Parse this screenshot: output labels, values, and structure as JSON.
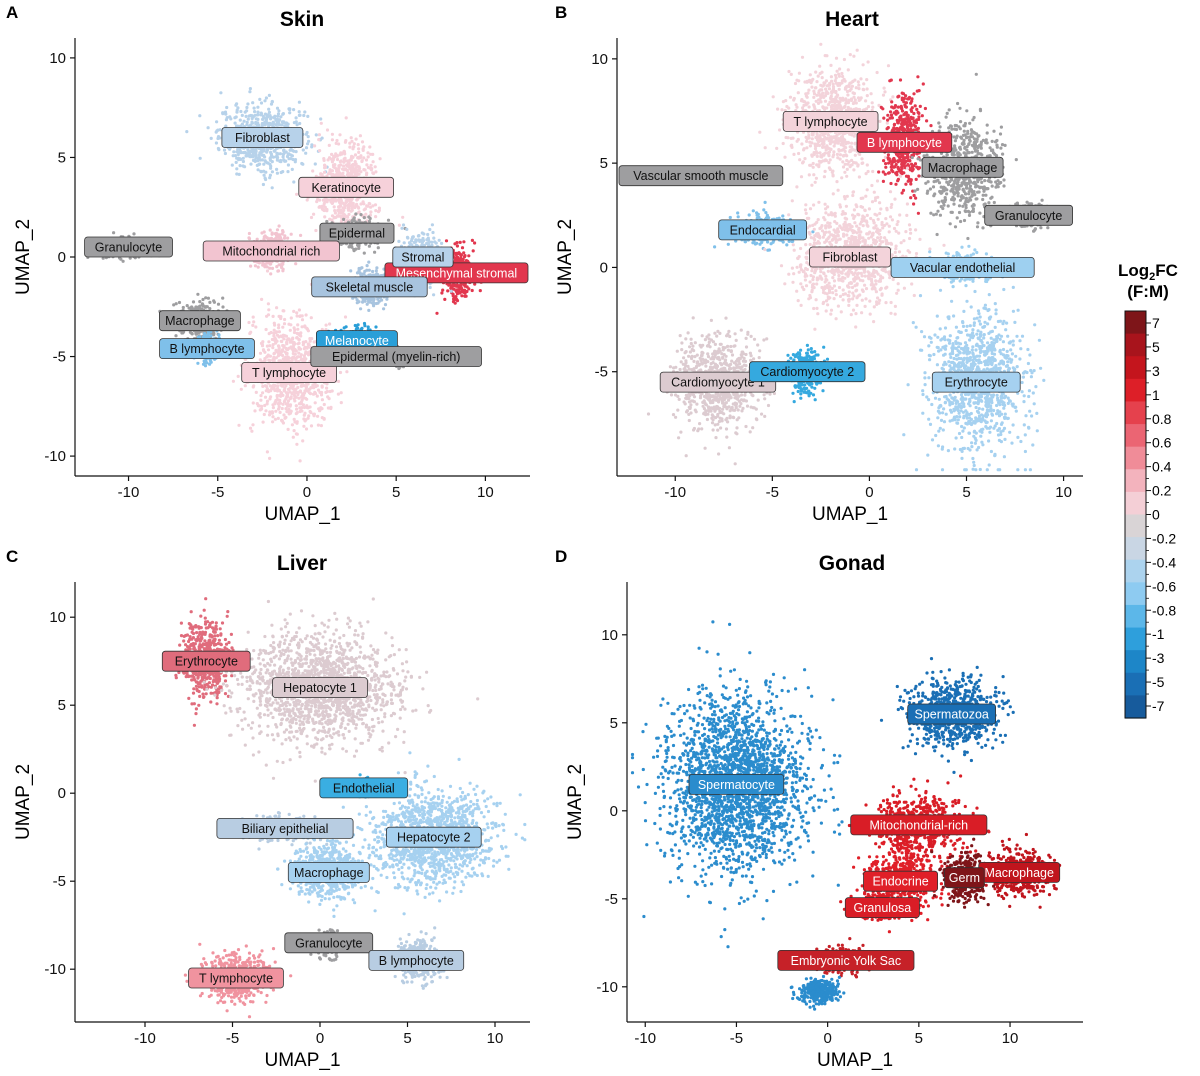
{
  "chart_data": [
    {
      "type": "scatter",
      "panel_letter": "A",
      "title": "Skin",
      "xlabel": "UMAP_1",
      "ylabel": "UMAP_2",
      "xlim": [
        -13,
        12.5
      ],
      "ylim": [
        -11,
        11
      ],
      "xticks": [
        -10,
        -5,
        0,
        5,
        10
      ],
      "yticks": [
        -10,
        -5,
        0,
        5,
        10
      ],
      "clusters": [
        {
          "label": "Fibroblast",
          "x": -2.5,
          "y": 6.0,
          "sx": 2.2,
          "sy": 1.5,
          "color": "#b7d2ea"
        },
        {
          "label": "Keratinocyte",
          "x": 2.2,
          "y": 3.5,
          "sx": 1.6,
          "sy": 2.0,
          "color": "#f6d1da"
        },
        {
          "label": "Granulocyte",
          "x": -10.0,
          "y": 0.5,
          "sx": 1.4,
          "sy": 0.4,
          "color": "#9e9ea0"
        },
        {
          "label": "Epidermal",
          "x": 2.8,
          "y": 1.2,
          "sx": 1.3,
          "sy": 0.6,
          "color": "#9e9ea0"
        },
        {
          "label": "Mesenchymal stromal",
          "x": 8.5,
          "y": -0.8,
          "sx": 0.7,
          "sy": 1.2,
          "color": "#e2374e"
        },
        {
          "label": "Mitochondrial rich",
          "x": -2.0,
          "y": 0.3,
          "sx": 1.2,
          "sy": 0.8,
          "color": "#f2c4d0"
        },
        {
          "label": "Stromal",
          "x": 6.5,
          "y": 0.0,
          "sx": 1.2,
          "sy": 1.0,
          "color": "#b7d2ea"
        },
        {
          "label": "Macrophage",
          "x": -6.0,
          "y": -3.2,
          "sx": 1.2,
          "sy": 0.8,
          "color": "#9e9ea0"
        },
        {
          "label": "Skeletal muscle",
          "x": 3.5,
          "y": -1.5,
          "sx": 1.0,
          "sy": 0.8,
          "color": "#a8c4df"
        },
        {
          "label": "Melanocyte",
          "x": 2.8,
          "y": -4.2,
          "sx": 1.0,
          "sy": 0.6,
          "color": "#2a9fd8"
        },
        {
          "label": "B lymphocyte",
          "x": -5.6,
          "y": -4.6,
          "sx": 0.5,
          "sy": 0.6,
          "color": "#7fc0ea"
        },
        {
          "label": "T lymphocyte",
          "x": -1.0,
          "y": -5.8,
          "sx": 2.0,
          "sy": 2.4,
          "color": "#f6d1da"
        },
        {
          "label": "Epidermal (myelin-rich)",
          "x": 5.0,
          "y": -5.0,
          "sx": 0.6,
          "sy": 0.4,
          "color": "#9e9ea0"
        }
      ]
    },
    {
      "type": "scatter",
      "panel_letter": "B",
      "title": "Heart",
      "xlabel": "UMAP_1",
      "ylabel": "UMAP_2",
      "xlim": [
        -13,
        11
      ],
      "ylim": [
        -10,
        11
      ],
      "xticks": [
        -10,
        -5,
        0,
        5,
        10
      ],
      "yticks": [
        -5,
        0,
        5,
        10
      ],
      "clusters": [
        {
          "label": "T lymphocyte",
          "x": -2.0,
          "y": 7.0,
          "sx": 2.0,
          "sy": 2.3,
          "color": "#f3d3da"
        },
        {
          "label": "B lymphocyte",
          "x": 1.8,
          "y": 6.0,
          "sx": 0.9,
          "sy": 2.0,
          "color": "#e2374e"
        },
        {
          "label": "Macrophage",
          "x": 4.8,
          "y": 4.8,
          "sx": 1.7,
          "sy": 2.0,
          "color": "#9e9ea0"
        },
        {
          "label": "Vascular smooth muscle",
          "x": -9.0,
          "y": 4.4,
          "sx": 1.4,
          "sy": 0.2,
          "color": "#9e9ea0"
        },
        {
          "label": "Granulocyte",
          "x": 8.2,
          "y": 2.5,
          "sx": 0.8,
          "sy": 0.5,
          "color": "#9e9ea0"
        },
        {
          "label": "Endocardial",
          "x": -5.5,
          "y": 1.8,
          "sx": 1.4,
          "sy": 0.6,
          "color": "#7fc0ea"
        },
        {
          "label": "Fibroblast",
          "x": -1.0,
          "y": 0.5,
          "sx": 2.6,
          "sy": 2.2,
          "color": "#f3d3da"
        },
        {
          "label": "Vacular endothelial",
          "x": 4.8,
          "y": 0.0,
          "sx": 1.3,
          "sy": 0.6,
          "color": "#9ed0f0"
        },
        {
          "label": "Cardiomyocyte 1",
          "x": -7.8,
          "y": -5.5,
          "sx": 2.0,
          "sy": 2.0,
          "color": "#dccbd0"
        },
        {
          "label": "Cardiomyocyte 2",
          "x": -3.2,
          "y": -5.0,
          "sx": 0.8,
          "sy": 0.9,
          "color": "#35a9df"
        },
        {
          "label": "Erythrocyte",
          "x": 5.5,
          "y": -5.5,
          "sx": 2.2,
          "sy": 3.0,
          "color": "#a6d1f0"
        }
      ]
    },
    {
      "type": "scatter",
      "panel_letter": "C",
      "title": "Liver",
      "xlabel": "UMAP_1",
      "ylabel": "UMAP_2",
      "xlim": [
        -14,
        12
      ],
      "ylim": [
        -13,
        12
      ],
      "xticks": [
        -10,
        -5,
        0,
        5,
        10
      ],
      "yticks": [
        -10,
        -5,
        0,
        5,
        10
      ],
      "clusters": [
        {
          "label": "Erythrocyte",
          "x": -6.5,
          "y": 7.5,
          "sx": 1.2,
          "sy": 2.0,
          "color": "#e06c7c"
        },
        {
          "label": "Hepatocyte 1",
          "x": 0.0,
          "y": 6.0,
          "sx": 4.0,
          "sy": 2.8,
          "color": "#dccbd0"
        },
        {
          "label": "Endothelial",
          "x": 2.5,
          "y": 0.3,
          "sx": 0.6,
          "sy": 0.4,
          "color": "#3aaee2"
        },
        {
          "label": "Biliary epithelial",
          "x": -2.0,
          "y": -2.0,
          "sx": 2.0,
          "sy": 0.6,
          "color": "#b8cde2"
        },
        {
          "label": "Hepatocyte 2",
          "x": 6.5,
          "y": -2.5,
          "sx": 3.2,
          "sy": 2.5,
          "color": "#a6d1f0"
        },
        {
          "label": "Macrophage",
          "x": 0.5,
          "y": -4.5,
          "sx": 1.8,
          "sy": 1.5,
          "color": "#a6d1f0"
        },
        {
          "label": "Granulocyte",
          "x": 0.5,
          "y": -8.5,
          "sx": 0.7,
          "sy": 0.6,
          "color": "#9e9ea0"
        },
        {
          "label": "B lymphocyte",
          "x": 5.5,
          "y": -9.5,
          "sx": 1.2,
          "sy": 1.0,
          "color": "#b8cde2"
        },
        {
          "label": "T lymphocyte",
          "x": -4.8,
          "y": -10.5,
          "sx": 1.8,
          "sy": 1.2,
          "color": "#f0939f"
        }
      ]
    },
    {
      "type": "scatter",
      "panel_letter": "D",
      "title": "Gonad",
      "xlabel": "UMAP_1",
      "ylabel": "UMAP_2",
      "xlim": [
        -11,
        14
      ],
      "ylim": [
        -12,
        13
      ],
      "xticks": [
        -10,
        -5,
        0,
        5,
        10
      ],
      "yticks": [
        -10,
        -5,
        0,
        5,
        10
      ],
      "clusters": [
        {
          "label": "Spermatozoa",
          "x": 6.8,
          "y": 5.5,
          "sx": 2.2,
          "sy": 1.8,
          "color": "#1a6fb5"
        },
        {
          "label": "Spermatocyte",
          "x": -5.0,
          "y": 1.5,
          "sx": 3.5,
          "sy": 4.5,
          "color": "#2b8ccd"
        },
        {
          "label": "Mitochondrial-rich",
          "x": 5.0,
          "y": -0.8,
          "sx": 2.2,
          "sy": 1.5,
          "color": "#d91d26"
        },
        {
          "label": "Macrophage",
          "x": 10.5,
          "y": -3.5,
          "sx": 1.5,
          "sy": 1.2,
          "color": "#c0151d"
        },
        {
          "label": "Endocrine",
          "x": 4.0,
          "y": -4.0,
          "sx": 1.6,
          "sy": 1.5,
          "color": "#e01f28"
        },
        {
          "label": "Germ",
          "x": 7.5,
          "y": -3.8,
          "sx": 1.0,
          "sy": 1.2,
          "color": "#7e1519"
        },
        {
          "label": "Granulosa",
          "x": 3.0,
          "y": -5.5,
          "sx": 1.2,
          "sy": 0.6,
          "color": "#d91d26"
        },
        {
          "label": "Embryonic Yolk Sac",
          "x": 1.0,
          "y": -8.5,
          "sx": 1.5,
          "sy": 0.6,
          "color": "#c62128"
        },
        {
          "label": "",
          "x": -0.5,
          "y": -10.2,
          "sx": 0.9,
          "sy": 0.6,
          "color": "#2b8ccd"
        }
      ]
    }
  ],
  "colorbar": {
    "title_main": "Log",
    "title_sub": "2",
    "title_tail": "FC",
    "title_line2": "(F:M)",
    "ticks": [
      "7",
      "5",
      "3",
      "1",
      "0.8",
      "0.6",
      "0.4",
      "0.2",
      "0",
      "-0.2",
      "-0.4",
      "-0.6",
      "-0.8",
      "-1",
      "-3",
      "-5",
      "-7"
    ],
    "colors": [
      "#7e1519",
      "#a8141c",
      "#c4151d",
      "#dd1f28",
      "#e5414d",
      "#eb6573",
      "#f08c98",
      "#f3b3bd",
      "#f4cfd6",
      "#d9d4d6",
      "#c9d6e4",
      "#acd3ee",
      "#8ecbf1",
      "#5cb7e9",
      "#2e9fdc",
      "#1d86c8",
      "#1a6fb5",
      "#175b9c"
    ]
  }
}
